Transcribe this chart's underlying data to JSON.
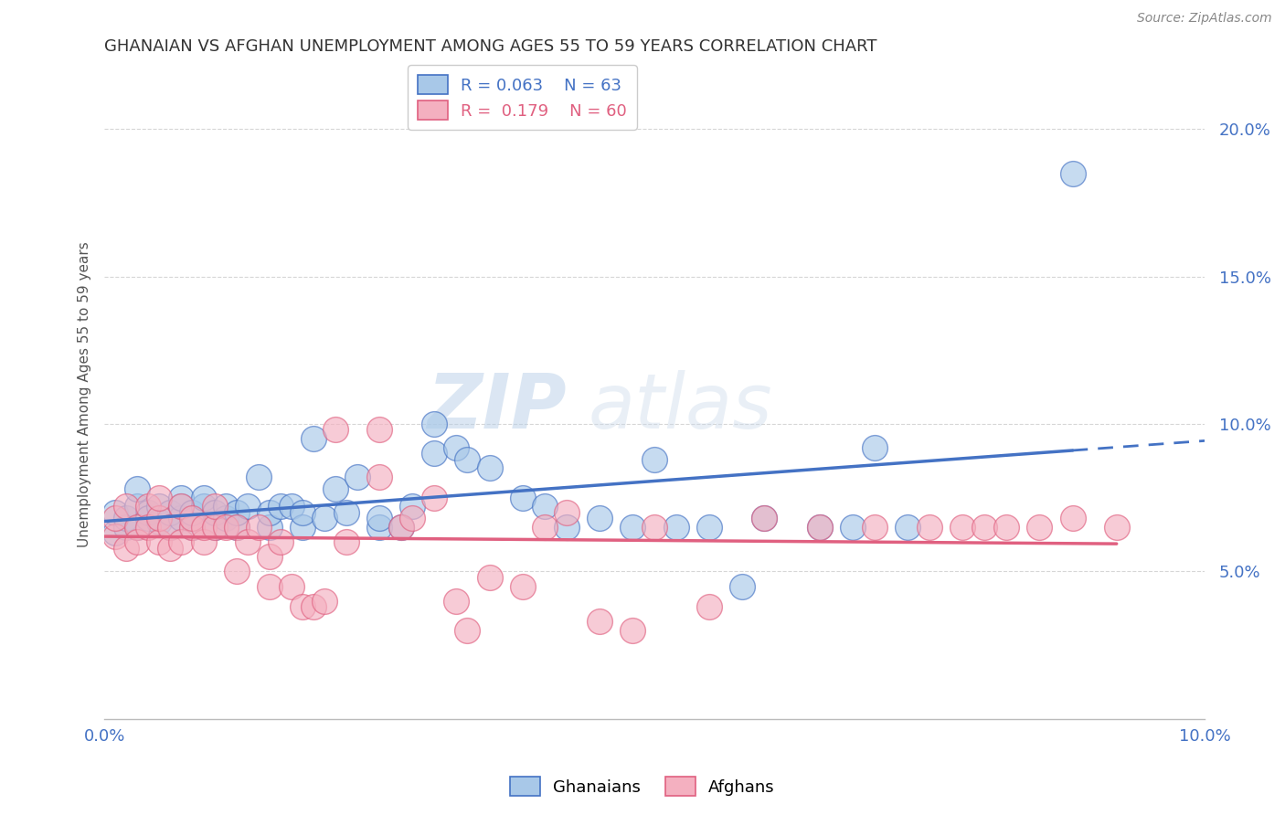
{
  "title": "GHANAIAN VS AFGHAN UNEMPLOYMENT AMONG AGES 55 TO 59 YEARS CORRELATION CHART",
  "source": "Source: ZipAtlas.com",
  "ylabel": "Unemployment Among Ages 55 to 59 years",
  "xlim": [
    0.0,
    0.1
  ],
  "ylim": [
    0.0,
    0.22
  ],
  "yticks": [
    0.05,
    0.1,
    0.15,
    0.2
  ],
  "ytick_labels": [
    "5.0%",
    "10.0%",
    "15.0%",
    "20.0%"
  ],
  "xticks": [
    0.0,
    0.1
  ],
  "xtick_labels": [
    "0.0%",
    "10.0%"
  ],
  "title_color": "#333333",
  "source_color": "#888888",
  "tick_color": "#4472c4",
  "ghanaian_color": "#a8c8e8",
  "afghan_color": "#f4b0c0",
  "ghanaian_edge": "#4472c4",
  "afghan_edge": "#e06080",
  "line_blue": "#4472c4",
  "line_pink": "#e06080",
  "legend_R_ghanaian": "R = 0.063",
  "legend_N_ghanaian": "N = 63",
  "legend_R_afghan": "R =  0.179",
  "legend_N_afghan": "N = 60",
  "watermark_zip": "ZIP",
  "watermark_atlas": "atlas",
  "ghanaian_x": [
    0.001,
    0.001,
    0.002,
    0.002,
    0.003,
    0.003,
    0.003,
    0.004,
    0.004,
    0.005,
    0.005,
    0.006,
    0.006,
    0.007,
    0.007,
    0.007,
    0.008,
    0.008,
    0.009,
    0.009,
    0.01,
    0.01,
    0.011,
    0.011,
    0.012,
    0.012,
    0.013,
    0.014,
    0.015,
    0.015,
    0.016,
    0.017,
    0.018,
    0.018,
    0.019,
    0.02,
    0.021,
    0.022,
    0.023,
    0.025,
    0.025,
    0.027,
    0.028,
    0.03,
    0.03,
    0.032,
    0.033,
    0.035,
    0.038,
    0.04,
    0.042,
    0.045,
    0.048,
    0.05,
    0.052,
    0.055,
    0.058,
    0.06,
    0.065,
    0.068,
    0.07,
    0.073,
    0.088
  ],
  "ghanaian_y": [
    0.063,
    0.07,
    0.065,
    0.068,
    0.065,
    0.072,
    0.078,
    0.07,
    0.068,
    0.067,
    0.072,
    0.065,
    0.07,
    0.068,
    0.072,
    0.075,
    0.065,
    0.07,
    0.072,
    0.075,
    0.065,
    0.07,
    0.068,
    0.072,
    0.065,
    0.07,
    0.072,
    0.082,
    0.065,
    0.07,
    0.072,
    0.072,
    0.065,
    0.07,
    0.095,
    0.068,
    0.078,
    0.07,
    0.082,
    0.065,
    0.068,
    0.065,
    0.072,
    0.09,
    0.1,
    0.092,
    0.088,
    0.085,
    0.075,
    0.072,
    0.065,
    0.068,
    0.065,
    0.088,
    0.065,
    0.065,
    0.045,
    0.068,
    0.065,
    0.065,
    0.092,
    0.065,
    0.185
  ],
  "afghan_x": [
    0.001,
    0.001,
    0.002,
    0.002,
    0.003,
    0.003,
    0.004,
    0.004,
    0.005,
    0.005,
    0.005,
    0.006,
    0.006,
    0.007,
    0.007,
    0.008,
    0.008,
    0.009,
    0.009,
    0.01,
    0.01,
    0.011,
    0.012,
    0.012,
    0.013,
    0.014,
    0.015,
    0.015,
    0.016,
    0.017,
    0.018,
    0.019,
    0.02,
    0.021,
    0.022,
    0.025,
    0.025,
    0.027,
    0.028,
    0.03,
    0.032,
    0.033,
    0.035,
    0.038,
    0.04,
    0.042,
    0.045,
    0.048,
    0.05,
    0.055,
    0.06,
    0.065,
    0.07,
    0.075,
    0.078,
    0.08,
    0.082,
    0.085,
    0.088,
    0.092
  ],
  "afghan_y": [
    0.062,
    0.068,
    0.058,
    0.072,
    0.065,
    0.06,
    0.072,
    0.065,
    0.06,
    0.068,
    0.075,
    0.065,
    0.058,
    0.072,
    0.06,
    0.065,
    0.068,
    0.06,
    0.065,
    0.065,
    0.072,
    0.065,
    0.065,
    0.05,
    0.06,
    0.065,
    0.055,
    0.045,
    0.06,
    0.045,
    0.038,
    0.038,
    0.04,
    0.098,
    0.06,
    0.082,
    0.098,
    0.065,
    0.068,
    0.075,
    0.04,
    0.03,
    0.048,
    0.045,
    0.065,
    0.07,
    0.033,
    0.03,
    0.065,
    0.038,
    0.068,
    0.065,
    0.065,
    0.065,
    0.065,
    0.065,
    0.065,
    0.065,
    0.068,
    0.065
  ]
}
